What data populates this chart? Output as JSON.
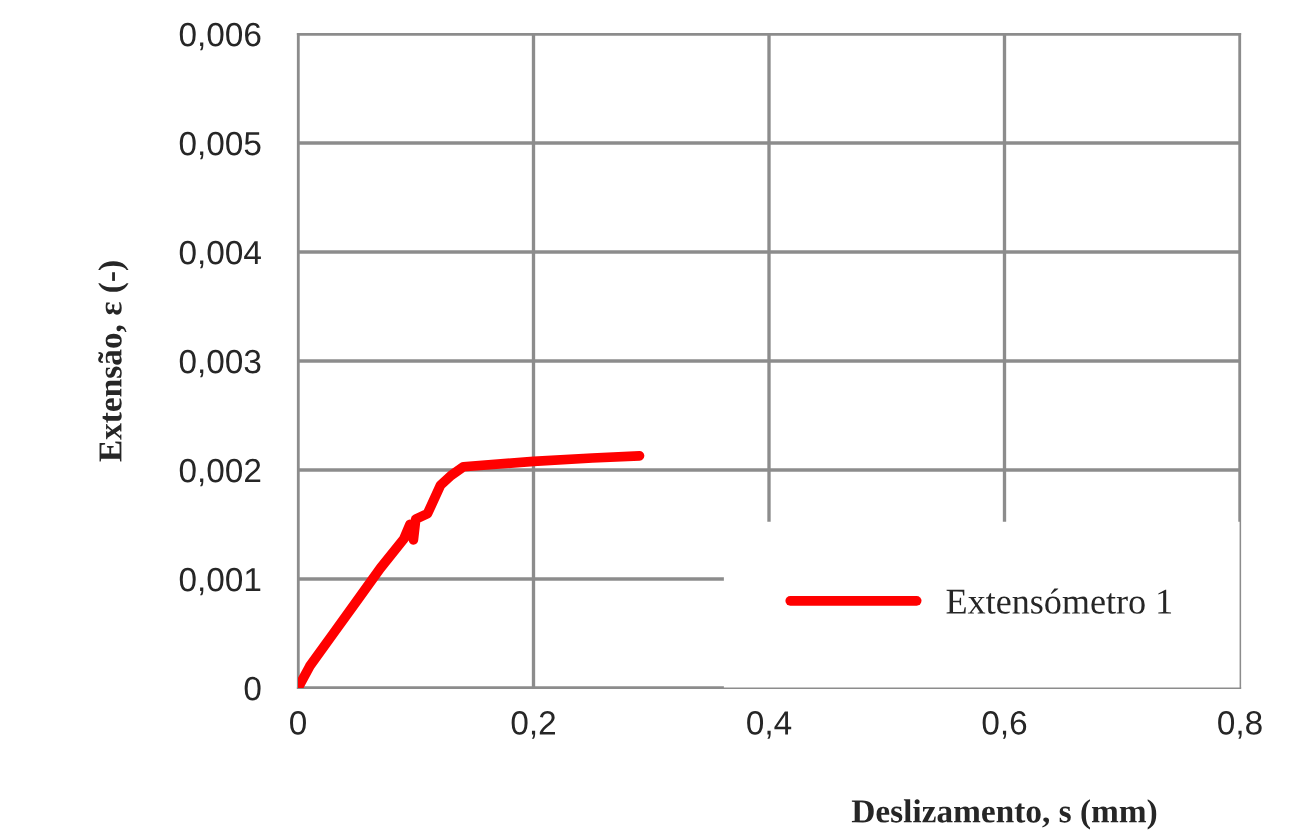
{
  "chart_data": {
    "type": "line",
    "xlabel": "Deslizamento, s (mm)",
    "ylabel": "Extensão, ε (-)",
    "series": [
      {
        "name": "Extensómetro 1",
        "color": "#ff0000",
        "x": [
          0,
          0.01,
          0.03,
          0.05,
          0.07,
          0.09,
          0.095,
          0.098,
          0.1,
          0.11,
          0.121,
          0.13,
          0.1405,
          0.2,
          0.25,
          0.29
        ],
        "values": [
          0,
          0.0002,
          0.0005,
          0.0008,
          0.0011,
          0.00137,
          0.0015,
          0.00136,
          0.00155,
          0.0016,
          0.00186,
          0.00195,
          0.00203,
          0.00208,
          0.00211,
          0.00213
        ]
      }
    ],
    "xlim": [
      0,
      0.8
    ],
    "xticks": [
      0,
      {
        "value": 0.2,
        "label": "0,2"
      },
      {
        "value": 0.4,
        "label": "0,4"
      },
      {
        "value": 0.6,
        "label": "0,6"
      },
      {
        "value": 0.8,
        "label": "0,8"
      }
    ],
    "ylim": [
      0,
      0.006
    ],
    "yticks": [
      0,
      {
        "value": 0.001,
        "label": "0,001"
      },
      {
        "value": 0.002,
        "label": "0,002"
      },
      {
        "value": 0.003,
        "label": "0,003"
      },
      {
        "value": 0.004,
        "label": "0,004"
      },
      {
        "value": 0.005,
        "label": "0,005"
      },
      {
        "value": 0.006,
        "label": "0,006"
      }
    ],
    "grid": true,
    "legend": "bottom right",
    "marker": "none",
    "line_style": "solid"
  }
}
